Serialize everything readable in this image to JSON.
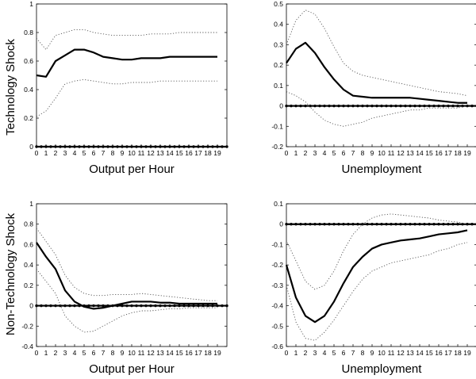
{
  "row_labels": [
    "Technology Shock",
    "Non-Technology Shock"
  ],
  "chart_data": [
    {
      "type": "line",
      "row": 0,
      "col": 0,
      "xlabel": "Output per Hour",
      "x": [
        0,
        1,
        2,
        3,
        4,
        5,
        6,
        7,
        8,
        9,
        10,
        11,
        12,
        13,
        14,
        15,
        16,
        17,
        18,
        19
      ],
      "xlim": [
        0,
        20
      ],
      "ylim": [
        0,
        1
      ],
      "yticks": [
        0,
        0.2,
        0.4,
        0.6,
        0.8,
        1
      ],
      "ytick_labels": [
        "0",
        "0.2",
        "0.4",
        "0.6",
        "0.8",
        "1"
      ],
      "zero_line": 0,
      "series": [
        {
          "style": "point",
          "values": [
            0.5,
            0.49,
            0.6,
            0.64,
            0.68,
            0.68,
            0.66,
            0.63,
            0.62,
            0.61,
            0.61,
            0.62,
            0.62,
            0.62,
            0.63,
            0.63,
            0.63,
            0.63,
            0.63,
            0.63
          ]
        },
        {
          "style": "upper",
          "values": [
            0.76,
            0.68,
            0.78,
            0.8,
            0.82,
            0.82,
            0.8,
            0.79,
            0.78,
            0.78,
            0.78,
            0.78,
            0.79,
            0.79,
            0.79,
            0.8,
            0.8,
            0.8,
            0.8,
            0.8
          ]
        },
        {
          "style": "lower",
          "values": [
            0.21,
            0.25,
            0.34,
            0.44,
            0.46,
            0.47,
            0.46,
            0.45,
            0.44,
            0.44,
            0.45,
            0.45,
            0.45,
            0.46,
            0.46,
            0.46,
            0.46,
            0.46,
            0.46,
            0.46
          ]
        }
      ]
    },
    {
      "type": "line",
      "row": 0,
      "col": 1,
      "xlabel": "Unemployment",
      "x": [
        0,
        1,
        2,
        3,
        4,
        5,
        6,
        7,
        8,
        9,
        10,
        11,
        12,
        13,
        14,
        15,
        16,
        17,
        18,
        19
      ],
      "xlim": [
        0,
        20
      ],
      "ylim": [
        -0.2,
        0.5
      ],
      "yticks": [
        -0.2,
        -0.1,
        0,
        0.1,
        0.2,
        0.3,
        0.4,
        0.5
      ],
      "ytick_labels": [
        "-0.2",
        "-0.1",
        "0",
        "0.1",
        "0.2",
        "0.3",
        "0.4",
        "0.5"
      ],
      "zero_line": 0,
      "series": [
        {
          "style": "point",
          "values": [
            0.21,
            0.28,
            0.31,
            0.26,
            0.19,
            0.13,
            0.08,
            0.05,
            0.045,
            0.04,
            0.04,
            0.04,
            0.04,
            0.04,
            0.035,
            0.03,
            0.025,
            0.02,
            0.015,
            0.015
          ]
        },
        {
          "style": "upper",
          "values": [
            0.3,
            0.42,
            0.47,
            0.45,
            0.38,
            0.29,
            0.21,
            0.17,
            0.15,
            0.14,
            0.13,
            0.12,
            0.11,
            0.1,
            0.09,
            0.08,
            0.07,
            0.065,
            0.06,
            0.05
          ]
        },
        {
          "style": "lower",
          "values": [
            0.07,
            0.05,
            0.02,
            -0.03,
            -0.07,
            -0.09,
            -0.1,
            -0.09,
            -0.08,
            -0.06,
            -0.05,
            -0.04,
            -0.03,
            -0.02,
            -0.02,
            -0.01,
            -0.01,
            -0.01,
            -0.01,
            0.0
          ]
        }
      ]
    },
    {
      "type": "line",
      "row": 1,
      "col": 0,
      "xlabel": "Output per Hour",
      "x": [
        0,
        1,
        2,
        3,
        4,
        5,
        6,
        7,
        8,
        9,
        10,
        11,
        12,
        13,
        14,
        15,
        16,
        17,
        18,
        19
      ],
      "xlim": [
        0,
        20
      ],
      "ylim": [
        -0.4,
        1
      ],
      "yticks": [
        -0.4,
        -0.2,
        0,
        0.2,
        0.4,
        0.6,
        0.8,
        1
      ],
      "ytick_labels": [
        "-0.4",
        "-0.2",
        "0",
        "0.2",
        "0.4",
        "0.6",
        "0.8",
        "1"
      ],
      "zero_line": 0,
      "series": [
        {
          "style": "point",
          "values": [
            0.62,
            0.48,
            0.36,
            0.15,
            0.04,
            -0.01,
            -0.03,
            -0.02,
            0.0,
            0.02,
            0.04,
            0.04,
            0.04,
            0.03,
            0.03,
            0.02,
            0.02,
            0.02,
            0.02,
            0.02
          ]
        },
        {
          "style": "upper",
          "values": [
            0.76,
            0.63,
            0.5,
            0.3,
            0.18,
            0.12,
            0.1,
            0.1,
            0.11,
            0.11,
            0.11,
            0.12,
            0.11,
            0.1,
            0.09,
            0.08,
            0.07,
            0.06,
            0.05,
            0.05
          ]
        },
        {
          "style": "lower",
          "values": [
            0.36,
            0.24,
            0.12,
            -0.1,
            -0.2,
            -0.26,
            -0.25,
            -0.2,
            -0.15,
            -0.1,
            -0.07,
            -0.05,
            -0.05,
            -0.04,
            -0.03,
            -0.03,
            -0.02,
            -0.02,
            -0.02,
            -0.02
          ]
        }
      ]
    },
    {
      "type": "line",
      "row": 1,
      "col": 1,
      "xlabel": "Unemployment",
      "x": [
        0,
        1,
        2,
        3,
        4,
        5,
        6,
        7,
        8,
        9,
        10,
        11,
        12,
        13,
        14,
        15,
        16,
        17,
        18,
        19
      ],
      "xlim": [
        0,
        20
      ],
      "ylim": [
        -0.6,
        0.1
      ],
      "yticks": [
        -0.6,
        -0.5,
        -0.4,
        -0.3,
        -0.2,
        -0.1,
        0,
        0.1
      ],
      "ytick_labels": [
        "-0.6",
        "-0.5",
        "-0.4",
        "-0.3",
        "-0.2",
        "-0.1",
        "0",
        "0.1"
      ],
      "zero_line": 0,
      "series": [
        {
          "style": "point",
          "values": [
            -0.2,
            -0.36,
            -0.45,
            -0.48,
            -0.45,
            -0.38,
            -0.29,
            -0.21,
            -0.16,
            -0.12,
            -0.1,
            -0.09,
            -0.08,
            -0.075,
            -0.07,
            -0.06,
            -0.05,
            -0.045,
            -0.04,
            -0.03
          ]
        },
        {
          "style": "upper",
          "values": [
            -0.08,
            -0.18,
            -0.28,
            -0.32,
            -0.3,
            -0.23,
            -0.13,
            -0.05,
            0.0,
            0.03,
            0.045,
            0.05,
            0.045,
            0.04,
            0.035,
            0.03,
            0.02,
            0.015,
            0.01,
            0.0
          ]
        },
        {
          "style": "lower",
          "values": [
            -0.3,
            -0.48,
            -0.56,
            -0.57,
            -0.53,
            -0.47,
            -0.4,
            -0.33,
            -0.27,
            -0.23,
            -0.21,
            -0.19,
            -0.18,
            -0.17,
            -0.16,
            -0.15,
            -0.13,
            -0.12,
            -0.1,
            -0.09
          ]
        }
      ]
    }
  ]
}
